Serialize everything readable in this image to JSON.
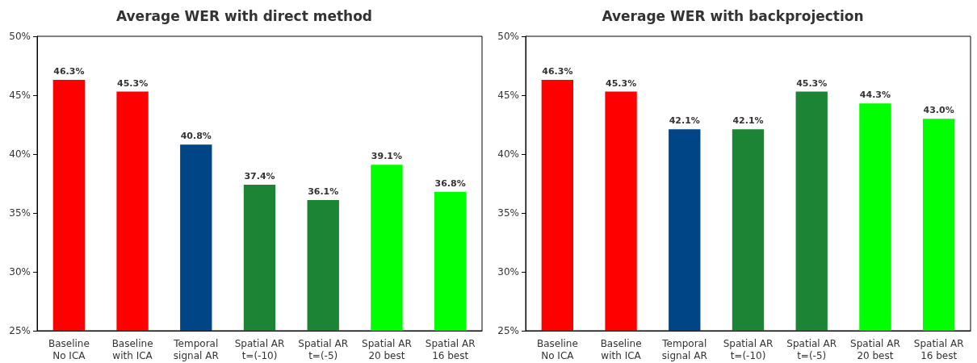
{
  "chart_data": [
    {
      "type": "bar",
      "title": "Average WER with direct method",
      "categories": [
        "Baseline\nNo ICA",
        "Baseline\nwith ICA",
        "Temporal\nsignal AR",
        "Spatial AR\nt=(-10)",
        "Spatial AR\nt=(-5)",
        "Spatial AR\n20 best",
        "Spatial AR\n16 best"
      ],
      "values": [
        46.3,
        45.3,
        40.8,
        37.4,
        36.1,
        39.1,
        36.8
      ],
      "colors": [
        "#ff0000",
        "#ff0000",
        "#004586",
        "#1b8535",
        "#1b8535",
        "#00ff00",
        "#00ff00"
      ],
      "value_labels": [
        "46.3%",
        "45.3%",
        "40.8%",
        "37.4%",
        "36.1%",
        "39.1%",
        "36.8%"
      ],
      "ylim": [
        25,
        50
      ],
      "yticks": [
        {
          "value": 25,
          "label": "25%"
        },
        {
          "value": 30,
          "label": "30%"
        },
        {
          "value": 35,
          "label": "35%"
        },
        {
          "value": 40,
          "label": "40%"
        },
        {
          "value": 45,
          "label": "45%"
        },
        {
          "value": 50,
          "label": "50%"
        }
      ]
    },
    {
      "type": "bar",
      "title": "Average WER with backprojection",
      "categories": [
        "Baseline\nNo ICA",
        "Baseline\nwith ICA",
        "Temporal\nsignal AR",
        "Spatial AR\nt=(-10)",
        "Spatial AR\nt=(-5)",
        "Spatial AR\n20 best",
        "Spatial AR\n16 best"
      ],
      "values": [
        46.3,
        45.3,
        42.1,
        42.1,
        45.3,
        44.3,
        43.0
      ],
      "colors": [
        "#ff0000",
        "#ff0000",
        "#004586",
        "#1b8535",
        "#1b8535",
        "#00ff00",
        "#00ff00"
      ],
      "value_labels": [
        "46.3%",
        "45.3%",
        "42.1%",
        "42.1%",
        "45.3%",
        "44.3%",
        "43.0%"
      ],
      "ylim": [
        25,
        50
      ],
      "yticks": [
        {
          "value": 25,
          "label": "25%"
        },
        {
          "value": 30,
          "label": "30%"
        },
        {
          "value": 35,
          "label": "35%"
        },
        {
          "value": 40,
          "label": "40%"
        },
        {
          "value": 45,
          "label": "45%"
        },
        {
          "value": 50,
          "label": "50%"
        }
      ]
    }
  ]
}
